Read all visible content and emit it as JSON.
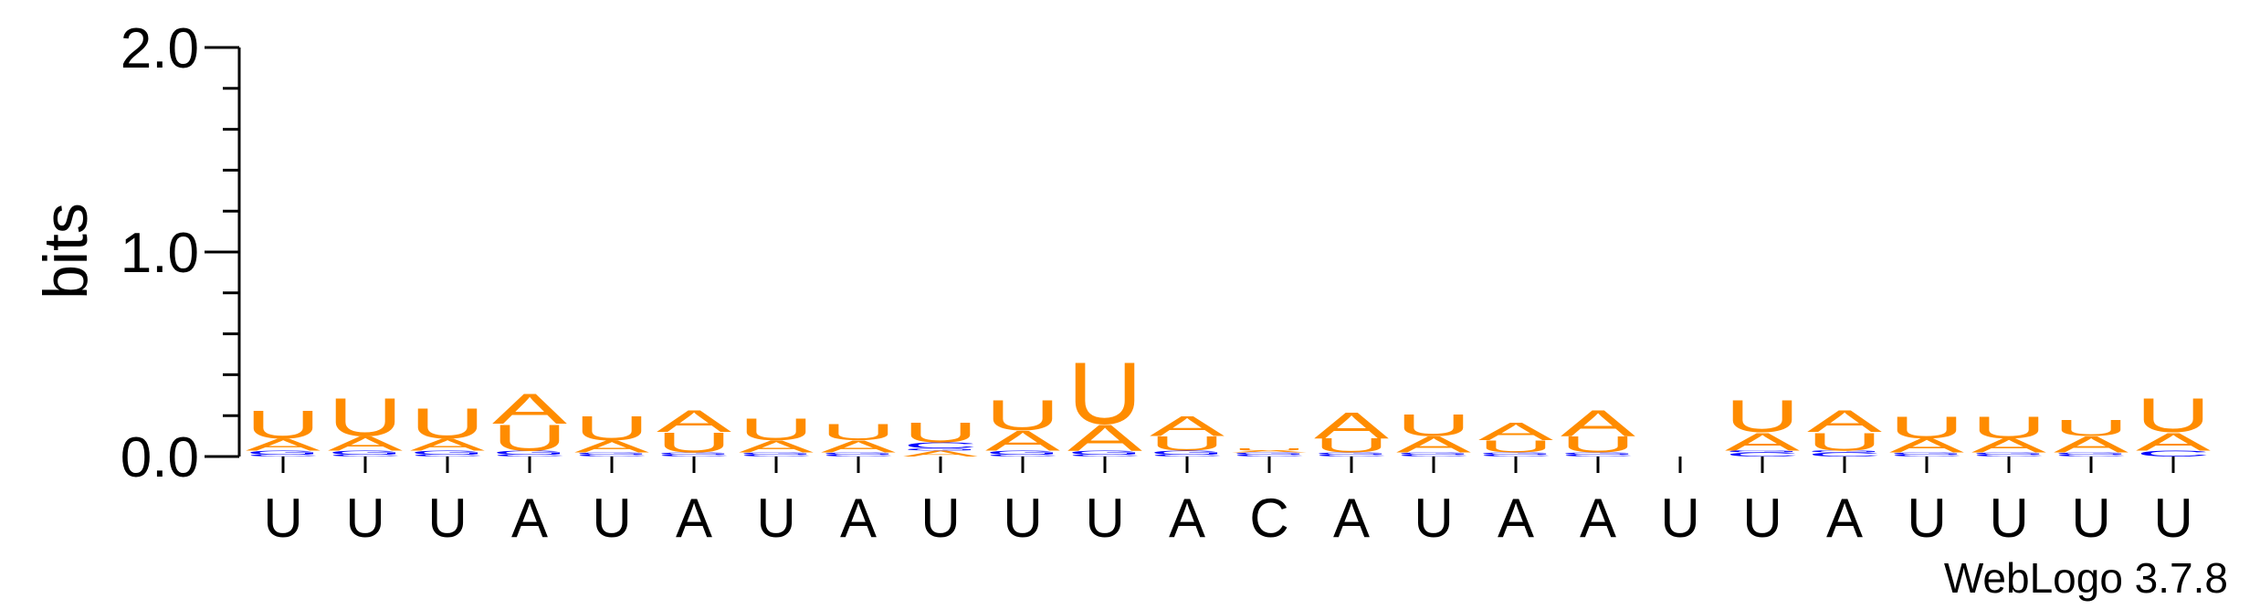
{
  "chart_data": {
    "type": "sequence-logo",
    "ylabel": "bits",
    "ylim": [
      0,
      2.0
    ],
    "y_ticks": [
      "0.0",
      "1.0",
      "2.0"
    ],
    "grid": false,
    "colors": {
      "A": "#ff8c00",
      "U": "#ff8c00",
      "C": "#0000ff",
      "G": "#0000ff"
    },
    "x_labels": [
      "U",
      "U",
      "U",
      "A",
      "U",
      "A",
      "U",
      "A",
      "U",
      "U",
      "U",
      "A",
      "C",
      "A",
      "U",
      "A",
      "A",
      "U",
      "U",
      "A",
      "U",
      "U",
      "U",
      "U"
    ],
    "positions": [
      [
        {
          "l": "C",
          "h": 0.01
        },
        {
          "l": "G",
          "h": 0.02
        },
        {
          "l": "A",
          "h": 0.06
        },
        {
          "l": "U",
          "h": 0.14
        }
      ],
      [
        {
          "l": "C",
          "h": 0.01
        },
        {
          "l": "G",
          "h": 0.02
        },
        {
          "l": "A",
          "h": 0.07
        },
        {
          "l": "U",
          "h": 0.19
        }
      ],
      [
        {
          "l": "C",
          "h": 0.01
        },
        {
          "l": "G",
          "h": 0.02
        },
        {
          "l": "A",
          "h": 0.06
        },
        {
          "l": "U",
          "h": 0.15
        }
      ],
      [
        {
          "l": "C",
          "h": 0.01
        },
        {
          "l": "G",
          "h": 0.02
        },
        {
          "l": "U",
          "h": 0.13
        },
        {
          "l": "A",
          "h": 0.15
        }
      ],
      [
        {
          "l": "C",
          "h": 0.01
        },
        {
          "l": "G",
          "h": 0.01
        },
        {
          "l": "A",
          "h": 0.06
        },
        {
          "l": "U",
          "h": 0.12
        }
      ],
      [
        {
          "l": "C",
          "h": 0.01
        },
        {
          "l": "G",
          "h": 0.01
        },
        {
          "l": "U",
          "h": 0.1
        },
        {
          "l": "A",
          "h": 0.11
        }
      ],
      [
        {
          "l": "C",
          "h": 0.01
        },
        {
          "l": "G",
          "h": 0.01
        },
        {
          "l": "A",
          "h": 0.06
        },
        {
          "l": "U",
          "h": 0.11
        }
      ],
      [
        {
          "l": "C",
          "h": 0.01
        },
        {
          "l": "G",
          "h": 0.01
        },
        {
          "l": "A",
          "h": 0.06
        },
        {
          "l": "U",
          "h": 0.08
        }
      ],
      [
        {
          "l": "A",
          "h": 0.03
        },
        {
          "l": "G",
          "h": 0.01
        },
        {
          "l": "C",
          "h": 0.03
        },
        {
          "l": "U",
          "h": 0.1
        }
      ],
      [
        {
          "l": "C",
          "h": 0.01
        },
        {
          "l": "G",
          "h": 0.02
        },
        {
          "l": "A",
          "h": 0.1
        },
        {
          "l": "U",
          "h": 0.15
        }
      ],
      [
        {
          "l": "C",
          "h": 0.01
        },
        {
          "l": "G",
          "h": 0.02
        },
        {
          "l": "A",
          "h": 0.13
        },
        {
          "l": "U",
          "h": 0.31
        }
      ],
      [
        {
          "l": "C",
          "h": 0.01
        },
        {
          "l": "G",
          "h": 0.02
        },
        {
          "l": "U",
          "h": 0.07
        },
        {
          "l": "A",
          "h": 0.1
        }
      ],
      [
        {
          "l": "C",
          "h": 0.01
        },
        {
          "l": "G",
          "h": 0.01
        },
        {
          "l": "A",
          "h": 0.01
        },
        {
          "l": "U",
          "h": 0.01
        }
      ],
      [
        {
          "l": "C",
          "h": 0.01
        },
        {
          "l": "G",
          "h": 0.01
        },
        {
          "l": "U",
          "h": 0.07
        },
        {
          "l": "A",
          "h": 0.13
        }
      ],
      [
        {
          "l": "C",
          "h": 0.01
        },
        {
          "l": "G",
          "h": 0.01
        },
        {
          "l": "A",
          "h": 0.08
        },
        {
          "l": "U",
          "h": 0.11
        }
      ],
      [
        {
          "l": "C",
          "h": 0.01
        },
        {
          "l": "G",
          "h": 0.01
        },
        {
          "l": "U",
          "h": 0.06
        },
        {
          "l": "A",
          "h": 0.09
        }
      ],
      [
        {
          "l": "C",
          "h": 0.01
        },
        {
          "l": "G",
          "h": 0.01
        },
        {
          "l": "U",
          "h": 0.08
        },
        {
          "l": "A",
          "h": 0.13
        }
      ],
      [
        {
          "l": "C",
          "h": 0.0
        },
        {
          "l": "G",
          "h": 0.0
        },
        {
          "l": "A",
          "h": 0.0
        },
        {
          "l": "U",
          "h": 0.0
        }
      ],
      [
        {
          "l": "C",
          "h": 0.02
        },
        {
          "l": "G",
          "h": 0.01
        },
        {
          "l": "A",
          "h": 0.09
        },
        {
          "l": "U",
          "h": 0.16
        }
      ],
      [
        {
          "l": "C",
          "h": 0.02
        },
        {
          "l": "G",
          "h": 0.01
        },
        {
          "l": "U",
          "h": 0.09
        },
        {
          "l": "A",
          "h": 0.11
        }
      ],
      [
        {
          "l": "C",
          "h": 0.01
        },
        {
          "l": "G",
          "h": 0.01
        },
        {
          "l": "A",
          "h": 0.07
        },
        {
          "l": "U",
          "h": 0.11
        }
      ],
      [
        {
          "l": "C",
          "h": 0.01
        },
        {
          "l": "G",
          "h": 0.01
        },
        {
          "l": "A",
          "h": 0.07
        },
        {
          "l": "U",
          "h": 0.11
        }
      ],
      [
        {
          "l": "C",
          "h": 0.01
        },
        {
          "l": "G",
          "h": 0.01
        },
        {
          "l": "A",
          "h": 0.08
        },
        {
          "l": "U",
          "h": 0.08
        }
      ],
      [
        {
          "l": "C",
          "h": 0.03
        },
        {
          "l": "A",
          "h": 0.09
        },
        {
          "l": "U",
          "h": 0.17
        }
      ]
    ]
  },
  "footer": {
    "credit": "WebLogo 3.7.8"
  }
}
